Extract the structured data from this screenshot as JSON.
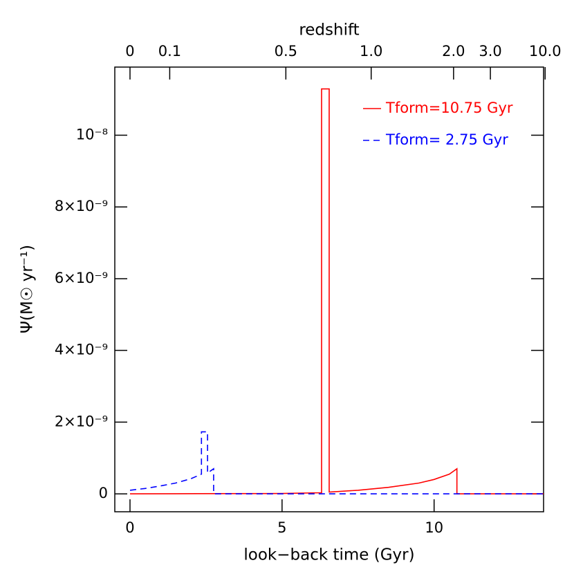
{
  "chart_data": {
    "type": "line",
    "xlabel": "look−back time (Gyr)",
    "ylabel": "Ψ(M☉ yr⁻¹)",
    "x2label": "redshift",
    "xlim": [
      -0.5,
      13.6
    ],
    "xticks": [
      0,
      5,
      10
    ],
    "ylim": [
      -5e-10,
      1.19e-08
    ],
    "yticks": [
      0,
      {
        "value": 2e-09,
        "label": "2×10⁻⁹"
      },
      {
        "value": 4e-09,
        "label": "4×10⁻⁹"
      },
      {
        "value": 6e-09,
        "label": "6×10⁻⁹"
      },
      {
        "value": 8e-09,
        "label": "8×10⁻⁹"
      },
      {
        "value": 1e-08,
        "label": "10⁻⁸"
      }
    ],
    "x2ticks": [
      0,
      0.1,
      0.5,
      {
        "value": 1,
        "label": "1.0"
      },
      {
        "value": 2,
        "label": "2.0"
      },
      {
        "value": 3,
        "label": "3.0"
      },
      {
        "value": 10,
        "label": "10.0"
      }
    ],
    "legend": "upper right",
    "series": [
      {
        "name": "Tform=10.75 Gyr",
        "color": "#ff0000",
        "dash": false,
        "x": [
          0,
          2.2,
          5,
          6.3,
          6.3,
          6.55,
          6.55,
          7.5,
          8.5,
          9.5,
          10,
          10.5,
          10.75,
          10.75,
          13.6
        ],
        "values": [
          0,
          5e-12,
          1e-11,
          3e-11,
          1.129e-08,
          1.129e-08,
          5e-11,
          1e-10,
          1.8e-10,
          3e-10,
          4e-10,
          5.5e-10,
          7e-10,
          0,
          0
        ]
      },
      {
        "name": "Tform= 2.75 Gyr",
        "color": "#0000ff",
        "dash": true,
        "x": [
          0,
          0.5,
          1,
          1.5,
          2,
          2.35,
          2.35,
          2.55,
          2.55,
          2.75,
          2.75,
          13.6
        ],
        "values": [
          1e-10,
          1.5e-10,
          2.2e-10,
          3e-10,
          4.2e-10,
          5.5e-10,
          1.73e-09,
          1.73e-09,
          5.8e-10,
          7e-10,
          0,
          0
        ]
      }
    ]
  }
}
